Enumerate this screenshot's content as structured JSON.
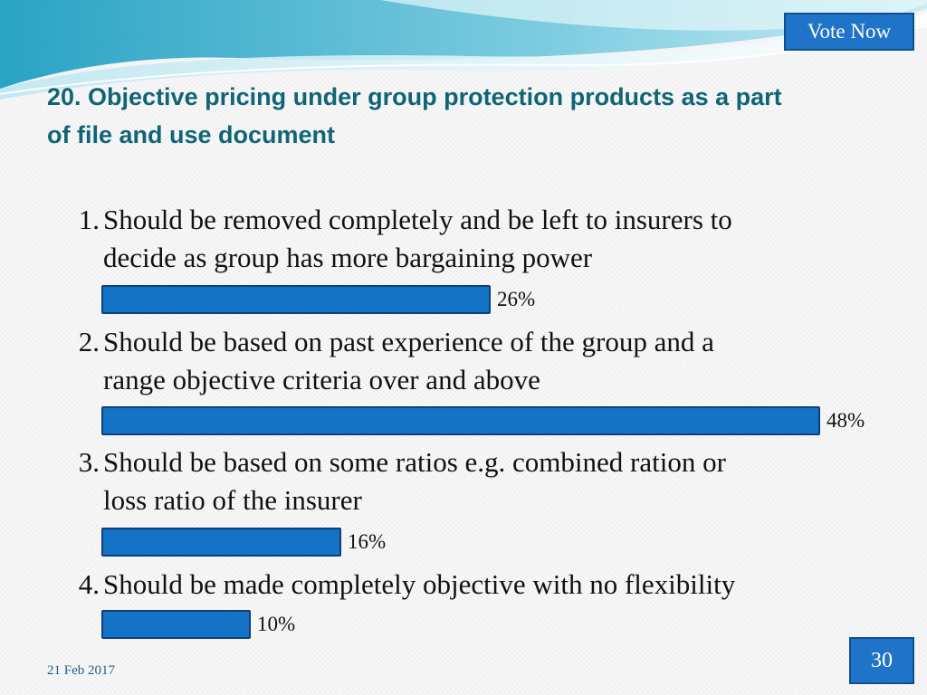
{
  "header": {
    "vote_button_label": "Vote Now"
  },
  "title": {
    "line1": "20. Objective pricing under group protection products as a part",
    "line2": "of file and use document"
  },
  "footer": {
    "date": "21 Feb 2017",
    "page_number": "30"
  },
  "chart_data": {
    "type": "bar",
    "orientation": "horizontal",
    "title": "20. Objective pricing under group protection products as a part of file and use document",
    "categories": [
      "Should be removed completely and be left to insurers to decide as group has more bargaining power",
      "Should be based on past experience of the group and a range objective criteria over and above",
      "Should be based on some ratios e.g. combined ration or loss ratio of the insurer",
      "Should be made completely objective with no flexibility"
    ],
    "values": [
      26,
      48,
      16,
      10
    ],
    "value_labels": [
      "26%",
      "48%",
      "16%",
      "10%"
    ],
    "unit": "%",
    "xlim": [
      0,
      48
    ],
    "bar_color": "#1573c7",
    "bar_border_color": "#0d3f78"
  },
  "options": [
    {
      "number": "1.",
      "line1": "Should be removed completely and be left to insurers to",
      "line2": "decide as group has more bargaining power"
    },
    {
      "number": "2.",
      "line1": "Should be based on past experience of the group and a",
      "line2": "range objective criteria over and above"
    },
    {
      "number": "3.",
      "line1": "Should be based on some ratios e.g. combined ration or",
      "line2": "loss ratio of the insurer"
    },
    {
      "number": "4.",
      "line1": "Should be made completely objective with no flexibility",
      "line2": ""
    }
  ]
}
